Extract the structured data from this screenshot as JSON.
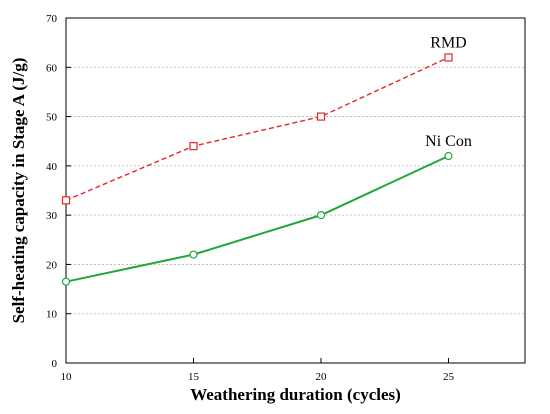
{
  "chart_data": {
    "type": "line",
    "xlabel": "Weathering duration (cycles)",
    "ylabel": "Self-heating capacity in Stage A (J/g)",
    "xlim": [
      10,
      28
    ],
    "ylim": [
      0,
      70
    ],
    "xticks": [
      10,
      15,
      20,
      25
    ],
    "yticks": [
      0,
      10,
      20,
      30,
      40,
      50,
      60,
      70
    ],
    "grid": "horizontal dashed",
    "series": [
      {
        "name": "RMD",
        "x": [
          10,
          15,
          20,
          25
        ],
        "values": [
          33,
          44,
          50,
          62
        ],
        "color": "#e8262b",
        "line_style": "dashed",
        "marker": "square"
      },
      {
        "name": "Ni Con",
        "x": [
          10,
          15,
          20,
          25
        ],
        "values": [
          16.5,
          22,
          30,
          42
        ],
        "color": "#1ea83c",
        "line_style": "solid",
        "marker": "circle"
      }
    ]
  }
}
